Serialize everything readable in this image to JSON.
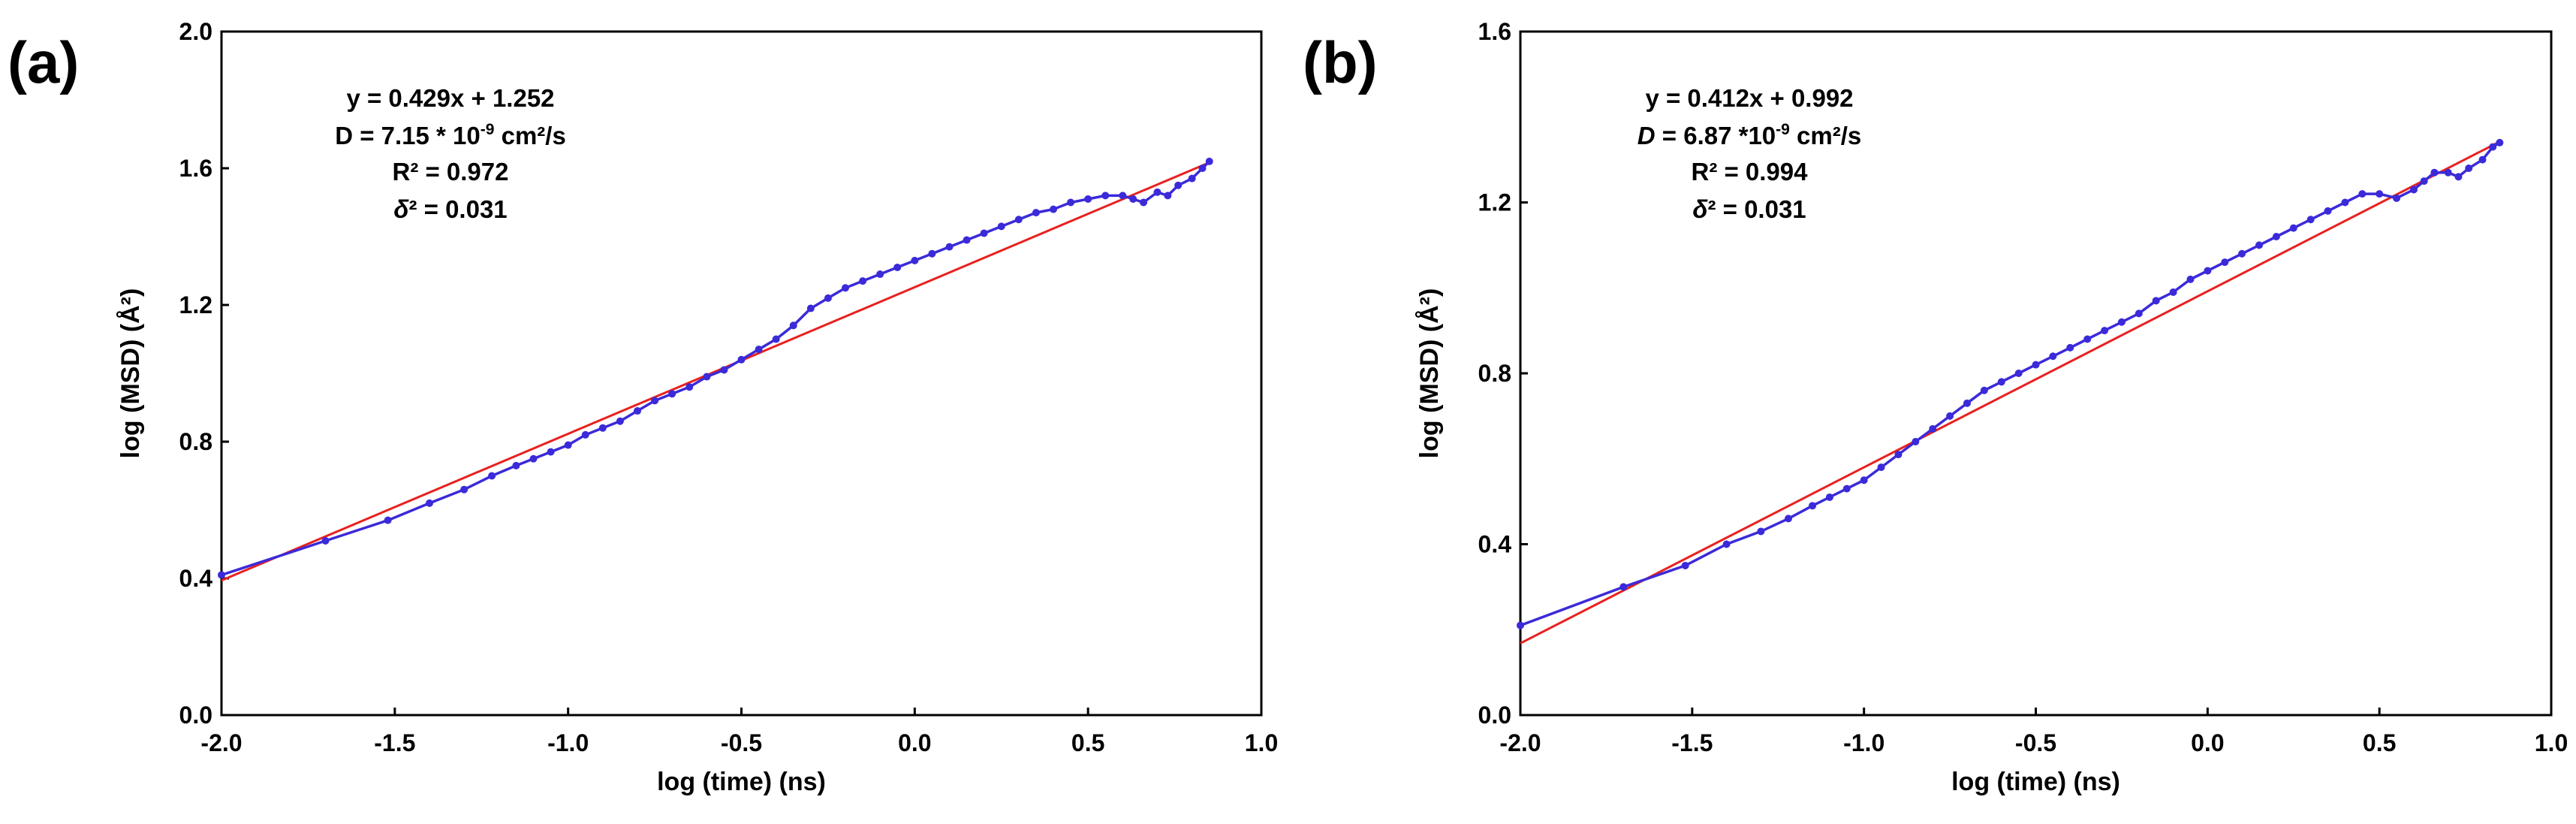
{
  "chart_data": [
    {
      "type": "line",
      "panel_label": "(a)",
      "xlabel": "log (time) (ns)",
      "ylabel": "log (MSD) (Å²)",
      "xlim": [
        -2.0,
        1.0
      ],
      "ylim": [
        0.0,
        2.0
      ],
      "xticks": [
        -2.0,
        -1.5,
        -1.0,
        -0.5,
        0.0,
        0.5,
        1.0
      ],
      "yticks": [
        0.0,
        0.4,
        0.8,
        1.2,
        1.6,
        2.0
      ],
      "xtick_labels": [
        "-2.0",
        "-1.5",
        "-1.0",
        "-0.5",
        "0.0",
        "0.5",
        "1.0"
      ],
      "ytick_labels": [
        "0.0",
        "0.4",
        "0.8",
        "1.2",
        "1.6",
        "2.0"
      ],
      "annotations": {
        "equation": "y = 0.429x + 1.252",
        "d_prefix": "D = 7.15 * 10",
        "d_exp": "-9",
        "d_unit": " cm²/s",
        "r2": "R² = 0.972",
        "delta_sym": "δ",
        "delta_rest": "² = 0.031"
      },
      "fit": {
        "slope": 0.429,
        "intercept": 1.252,
        "color": "#e8211f"
      },
      "series": [
        {
          "name": "MSD",
          "color": "#3b2ad9",
          "x": [
            -2.0,
            -1.7,
            -1.52,
            -1.4,
            -1.3,
            -1.22,
            -1.15,
            -1.1,
            -1.05,
            -1.0,
            -0.95,
            -0.9,
            -0.85,
            -0.8,
            -0.75,
            -0.7,
            -0.65,
            -0.6,
            -0.55,
            -0.5,
            -0.45,
            -0.4,
            -0.35,
            -0.3,
            -0.25,
            -0.2,
            -0.15,
            -0.1,
            -0.05,
            0.0,
            0.05,
            0.1,
            0.15,
            0.2,
            0.25,
            0.3,
            0.35,
            0.4,
            0.45,
            0.5,
            0.55,
            0.6,
            0.63,
            0.66,
            0.7,
            0.73,
            0.76,
            0.8,
            0.83,
            0.85
          ],
          "y": [
            0.41,
            0.51,
            0.57,
            0.62,
            0.66,
            0.7,
            0.73,
            0.75,
            0.77,
            0.79,
            0.82,
            0.84,
            0.86,
            0.89,
            0.92,
            0.94,
            0.96,
            0.99,
            1.01,
            1.04,
            1.07,
            1.1,
            1.14,
            1.19,
            1.22,
            1.25,
            1.27,
            1.29,
            1.31,
            1.33,
            1.35,
            1.37,
            1.39,
            1.41,
            1.43,
            1.45,
            1.47,
            1.48,
            1.5,
            1.51,
            1.52,
            1.52,
            1.51,
            1.5,
            1.53,
            1.52,
            1.55,
            1.57,
            1.6,
            1.62
          ]
        }
      ]
    },
    {
      "type": "line",
      "panel_label": "(b)",
      "xlabel": "log (time) (ns)",
      "ylabel": "log (MSD) (Å²)",
      "xlim": [
        -2.0,
        1.0
      ],
      "ylim": [
        0.0,
        1.6
      ],
      "xticks": [
        -2.0,
        -1.5,
        -1.0,
        -0.5,
        0.0,
        0.5,
        1.0
      ],
      "yticks": [
        0.0,
        0.4,
        0.8,
        1.2,
        1.6
      ],
      "xtick_labels": [
        "-2.0",
        "-1.5",
        "-1.0",
        "-0.5",
        "0.0",
        "0.5",
        "1.0"
      ],
      "ytick_labels": [
        "0.0",
        "0.4",
        "0.8",
        "1.2",
        "1.6"
      ],
      "annotations": {
        "equation": "y = 0.412x + 0.992",
        "d_prefix": "D",
        "d_mid": " = 6.87 *10",
        "d_exp": "-9",
        "d_unit": " cm²/s",
        "r2": "R² = 0.994",
        "delta_sym": "δ",
        "delta_rest": "² = 0.031"
      },
      "fit": {
        "slope": 0.412,
        "intercept": 0.992,
        "color": "#e8211f"
      },
      "series": [
        {
          "name": "MSD",
          "color": "#3b2ad9",
          "x": [
            -2.0,
            -1.7,
            -1.52,
            -1.4,
            -1.3,
            -1.22,
            -1.15,
            -1.1,
            -1.05,
            -1.0,
            -0.95,
            -0.9,
            -0.85,
            -0.8,
            -0.75,
            -0.7,
            -0.65,
            -0.6,
            -0.55,
            -0.5,
            -0.45,
            -0.4,
            -0.35,
            -0.3,
            -0.25,
            -0.2,
            -0.15,
            -0.1,
            -0.05,
            0.0,
            0.05,
            0.1,
            0.15,
            0.2,
            0.25,
            0.3,
            0.35,
            0.4,
            0.45,
            0.5,
            0.55,
            0.6,
            0.63,
            0.66,
            0.7,
            0.73,
            0.76,
            0.8,
            0.83,
            0.85
          ],
          "y": [
            0.21,
            0.3,
            0.35,
            0.4,
            0.43,
            0.46,
            0.49,
            0.51,
            0.53,
            0.55,
            0.58,
            0.61,
            0.64,
            0.67,
            0.7,
            0.73,
            0.76,
            0.78,
            0.8,
            0.82,
            0.84,
            0.86,
            0.88,
            0.9,
            0.92,
            0.94,
            0.97,
            0.99,
            1.02,
            1.04,
            1.06,
            1.08,
            1.1,
            1.12,
            1.14,
            1.16,
            1.18,
            1.2,
            1.22,
            1.22,
            1.21,
            1.23,
            1.25,
            1.27,
            1.27,
            1.26,
            1.28,
            1.3,
            1.33,
            1.34
          ]
        }
      ]
    }
  ]
}
